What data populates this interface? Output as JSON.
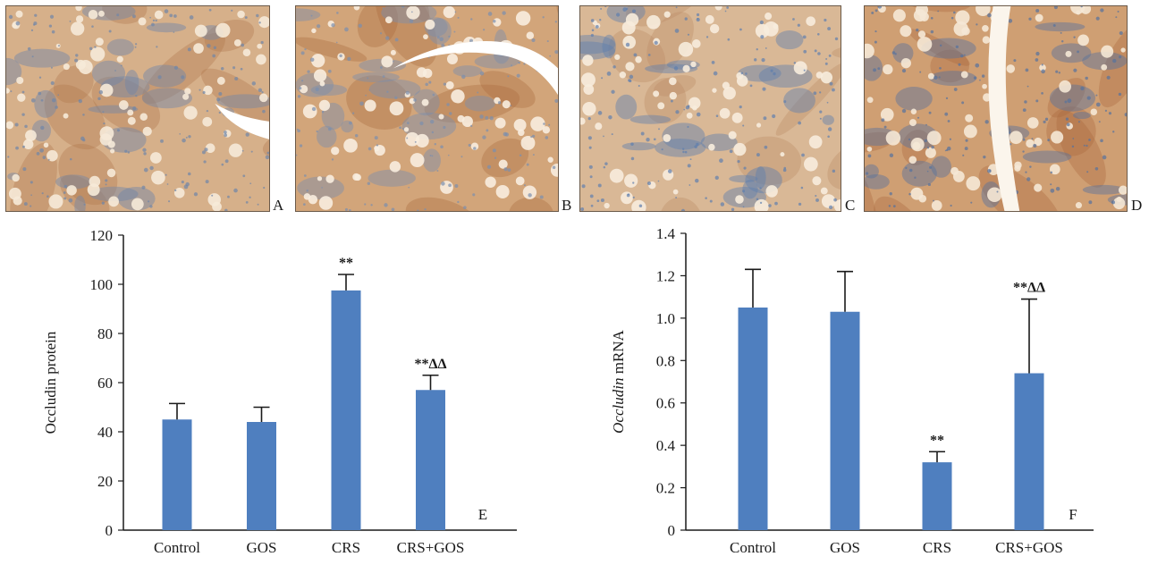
{
  "micrographs": [
    {
      "label": "A",
      "base": "#d6b08a",
      "cell": "#f6ead8",
      "stain": "#6f86a8",
      "brown": "#b0764a"
    },
    {
      "label": "B",
      "base": "#d2a57a",
      "cell": "#f8eddf",
      "stain": "#7b8fae",
      "brown": "#a9693c"
    },
    {
      "label": "C",
      "base": "#d9b896",
      "cell": "#f7ecdd",
      "stain": "#5f7fae",
      "brown": "#b98a63"
    },
    {
      "label": "D",
      "base": "#cf9f73",
      "cell": "#f5e8d6",
      "stain": "#56729e",
      "brown": "#a8683b"
    }
  ],
  "colors": {
    "bar": "#4f7fbf",
    "error": "#1a1a1a",
    "axis": "#1a1a1a"
  },
  "chart_data": [
    {
      "type": "bar",
      "panel_label": "E",
      "categories": [
        "Control",
        "GOS",
        "CRS",
        "CRS+GOS"
      ],
      "values": [
        45,
        44,
        97.5,
        57
      ],
      "errors": [
        6.5,
        6,
        6.5,
        6
      ],
      "annotations": [
        "",
        "",
        "**",
        "**ΔΔ"
      ],
      "ylabel": "Occludin protein",
      "ylim": [
        0,
        120
      ],
      "yticks": [
        "0",
        "20",
        "40",
        "60",
        "80",
        "100",
        "120"
      ],
      "ytick_values": [
        0,
        20,
        40,
        60,
        80,
        100,
        120
      ],
      "grid": false
    },
    {
      "type": "bar",
      "panel_label": "F",
      "categories": [
        "Control",
        "GOS",
        "CRS",
        "CRS+GOS"
      ],
      "values": [
        1.05,
        1.03,
        0.32,
        0.74
      ],
      "errors": [
        0.18,
        0.19,
        0.05,
        0.35
      ],
      "annotations": [
        "",
        "",
        "**",
        "**ΔΔ"
      ],
      "ylabel_italic": "Occludin",
      "ylabel_rest": " mRNA",
      "ylim": [
        0,
        1.4
      ],
      "yticks": [
        "0",
        "0.2",
        "0.4",
        "0.6",
        "0.8",
        "1.0",
        "1.2",
        "1.4"
      ],
      "ytick_values": [
        0,
        0.2,
        0.4,
        0.6,
        0.8,
        1.0,
        1.2,
        1.4
      ],
      "grid": false
    }
  ]
}
